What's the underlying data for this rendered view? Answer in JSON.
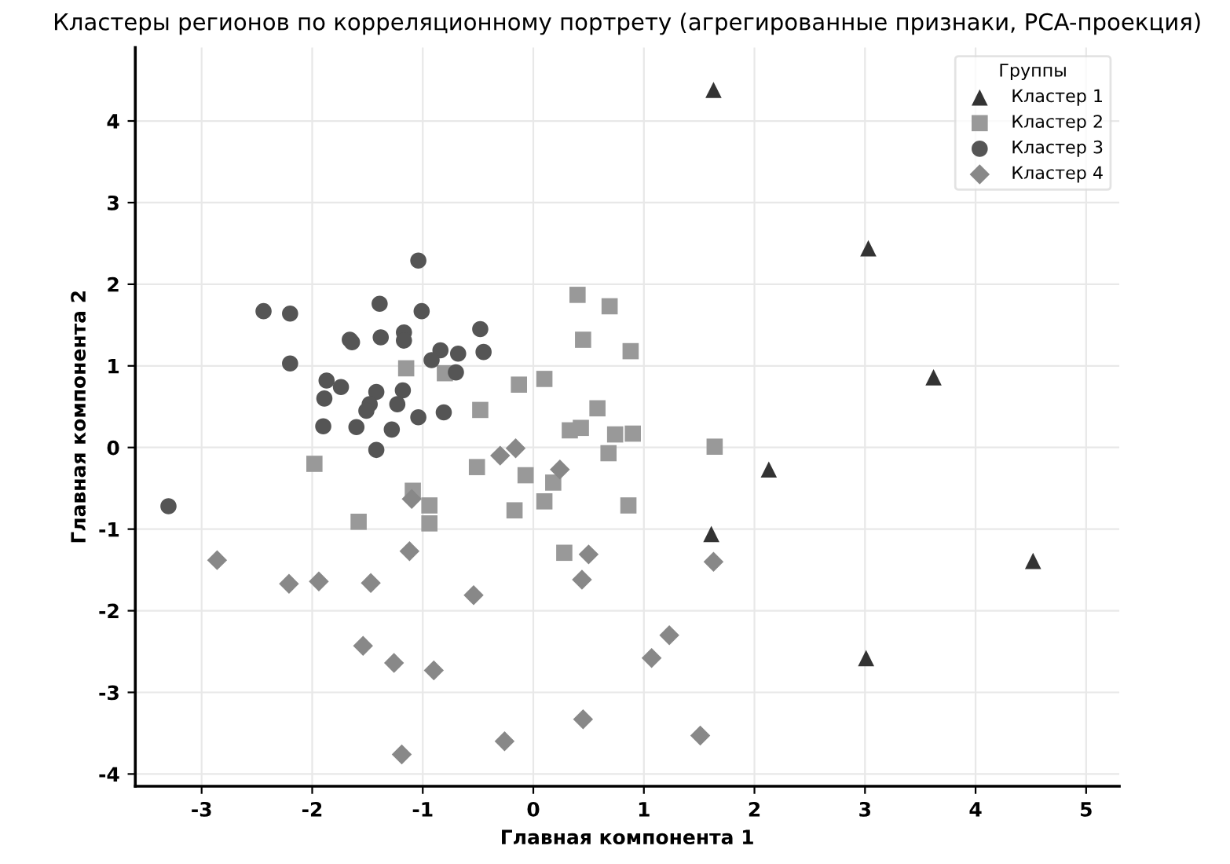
{
  "chart_data": {
    "type": "scatter",
    "title": "Кластеры регионов по корреляционному портрету (агрегированные признаки, PCA-проекция)",
    "xlabel": "Главная компонента 1",
    "ylabel": "Главная компонента 2",
    "legend_title": "Группы",
    "legend": "top right",
    "grid": true,
    "xlim": [
      -3.6,
      5.3
    ],
    "ylim": [
      -4.15,
      4.9
    ],
    "xticks": [
      -3,
      -2,
      -1,
      0,
      1,
      2,
      3,
      4,
      5
    ],
    "yticks": [
      -4,
      -3,
      -2,
      -1,
      0,
      1,
      2,
      3,
      4
    ],
    "series": [
      {
        "name": "Кластер 1",
        "color": "#333333",
        "marker": "triangle",
        "x": [
          1.63,
          3.03,
          3.62,
          2.13,
          1.61,
          4.52,
          3.01
        ],
        "values": [
          4.38,
          2.44,
          0.86,
          -0.27,
          -1.06,
          -1.39,
          -2.58
        ]
      },
      {
        "name": "Кластер 2",
        "color": "#999999",
        "marker": "square",
        "x": [
          -1.15,
          -0.8,
          -0.48,
          -1.98,
          -0.51,
          -1.09,
          -0.94,
          -1.58,
          -0.94,
          0.4,
          0.69,
          0.45,
          0.88,
          -0.13,
          0.1,
          0.58,
          0.33,
          0.43,
          0.74,
          0.9,
          0.68,
          1.64,
          -0.07,
          0.18,
          0.1,
          -0.17,
          0.86,
          0.28
        ],
        "values": [
          0.97,
          0.91,
          0.46,
          -0.2,
          -0.24,
          -0.53,
          -0.71,
          -0.91,
          -0.93,
          1.87,
          1.73,
          1.32,
          1.18,
          0.77,
          0.84,
          0.48,
          0.21,
          0.24,
          0.16,
          0.17,
          -0.07,
          0.01,
          -0.34,
          -0.43,
          -0.66,
          -0.77,
          -0.71,
          -1.29
        ]
      },
      {
        "name": "Кластер 3",
        "color": "#555555",
        "marker": "circle",
        "x": [
          -1.04,
          -2.44,
          -2.2,
          -1.39,
          -1.01,
          -0.48,
          -1.66,
          -1.64,
          -1.38,
          -1.17,
          -1.17,
          -0.45,
          -0.84,
          -0.68,
          -0.92,
          -2.2,
          -0.7,
          -1.87,
          -1.74,
          -1.89,
          -1.42,
          -1.18,
          -1.48,
          -1.51,
          -1.23,
          -0.81,
          -1.04,
          -1.9,
          -1.6,
          -1.28,
          -1.42,
          -3.3
        ],
        "values": [
          2.29,
          1.67,
          1.64,
          1.76,
          1.67,
          1.45,
          1.32,
          1.29,
          1.35,
          1.41,
          1.31,
          1.17,
          1.19,
          1.15,
          1.07,
          1.03,
          0.92,
          0.82,
          0.74,
          0.6,
          0.68,
          0.7,
          0.53,
          0.45,
          0.53,
          0.43,
          0.37,
          0.26,
          0.25,
          0.22,
          -0.03,
          -0.72
        ]
      },
      {
        "name": "Кластер 4",
        "color": "#888888",
        "marker": "diamond",
        "x": [
          -0.3,
          -0.16,
          0.24,
          0.5,
          0.44,
          1.63,
          -1.1,
          -2.86,
          -2.21,
          -1.94,
          -1.47,
          -1.12,
          -0.54,
          -1.54,
          -1.26,
          -0.9,
          1.23,
          1.07,
          0.45,
          -0.26,
          1.51,
          -1.19
        ],
        "values": [
          -0.1,
          -0.01,
          -0.27,
          -1.31,
          -1.62,
          -1.4,
          -0.63,
          -1.38,
          -1.67,
          -1.64,
          -1.66,
          -1.27,
          -1.81,
          -2.43,
          -2.64,
          -2.73,
          -2.3,
          -2.58,
          -3.33,
          -3.6,
          -3.53,
          -3.76
        ]
      }
    ]
  }
}
